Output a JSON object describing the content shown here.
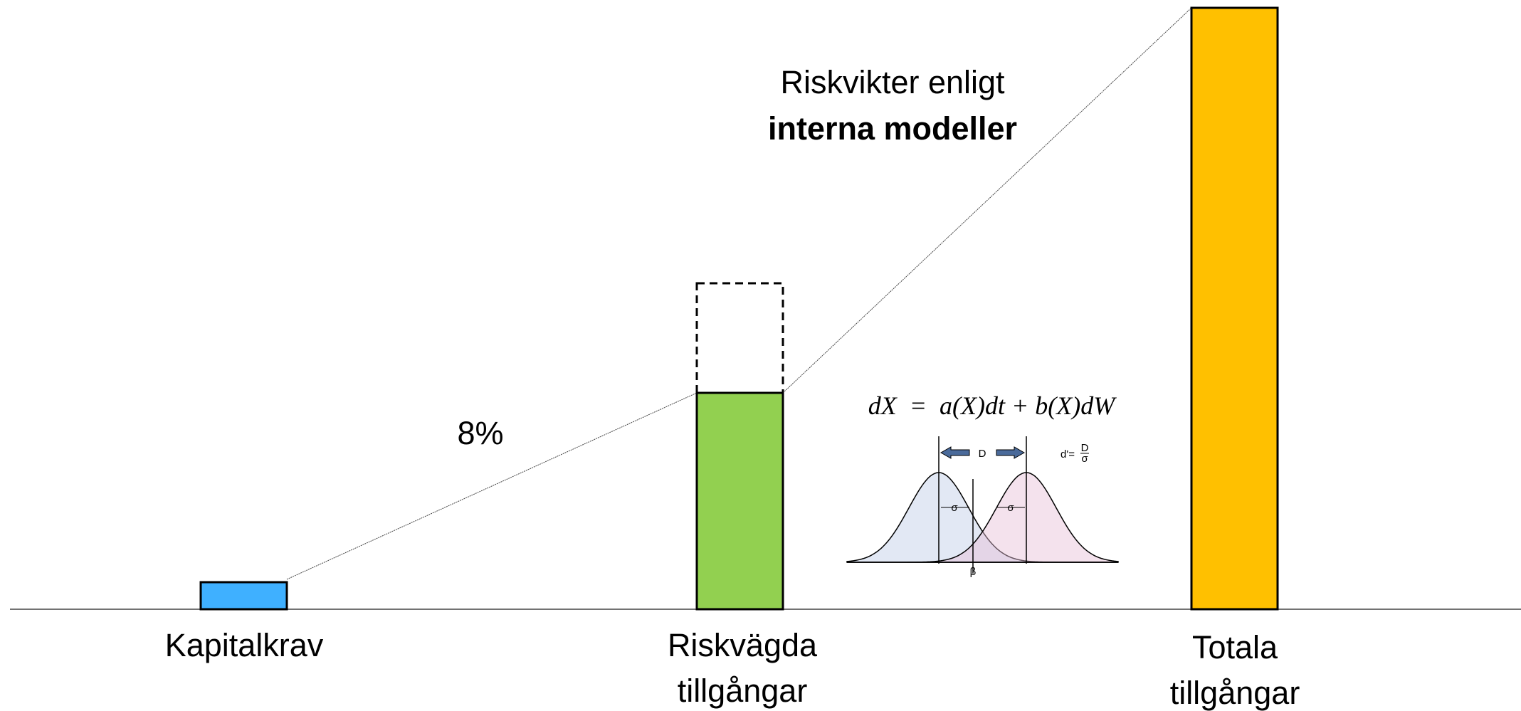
{
  "annotation": {
    "line1": "Riskvikter enligt",
    "line2": "interna modeller"
  },
  "rate_label": "8%",
  "formula": "dX  =  a(X)dt + b(X)dW",
  "inset": {
    "distance": "D",
    "sigma": "σ",
    "beta": "β",
    "dprime": "d'=",
    "frac_num": "D",
    "frac_den": "σ"
  },
  "bars": [
    {
      "label": [
        "Kapitalkrav"
      ]
    },
    {
      "label": [
        "Riskvägda",
        "tillgångar"
      ]
    },
    {
      "label": [
        "Totala",
        "tillgångar"
      ]
    }
  ]
}
